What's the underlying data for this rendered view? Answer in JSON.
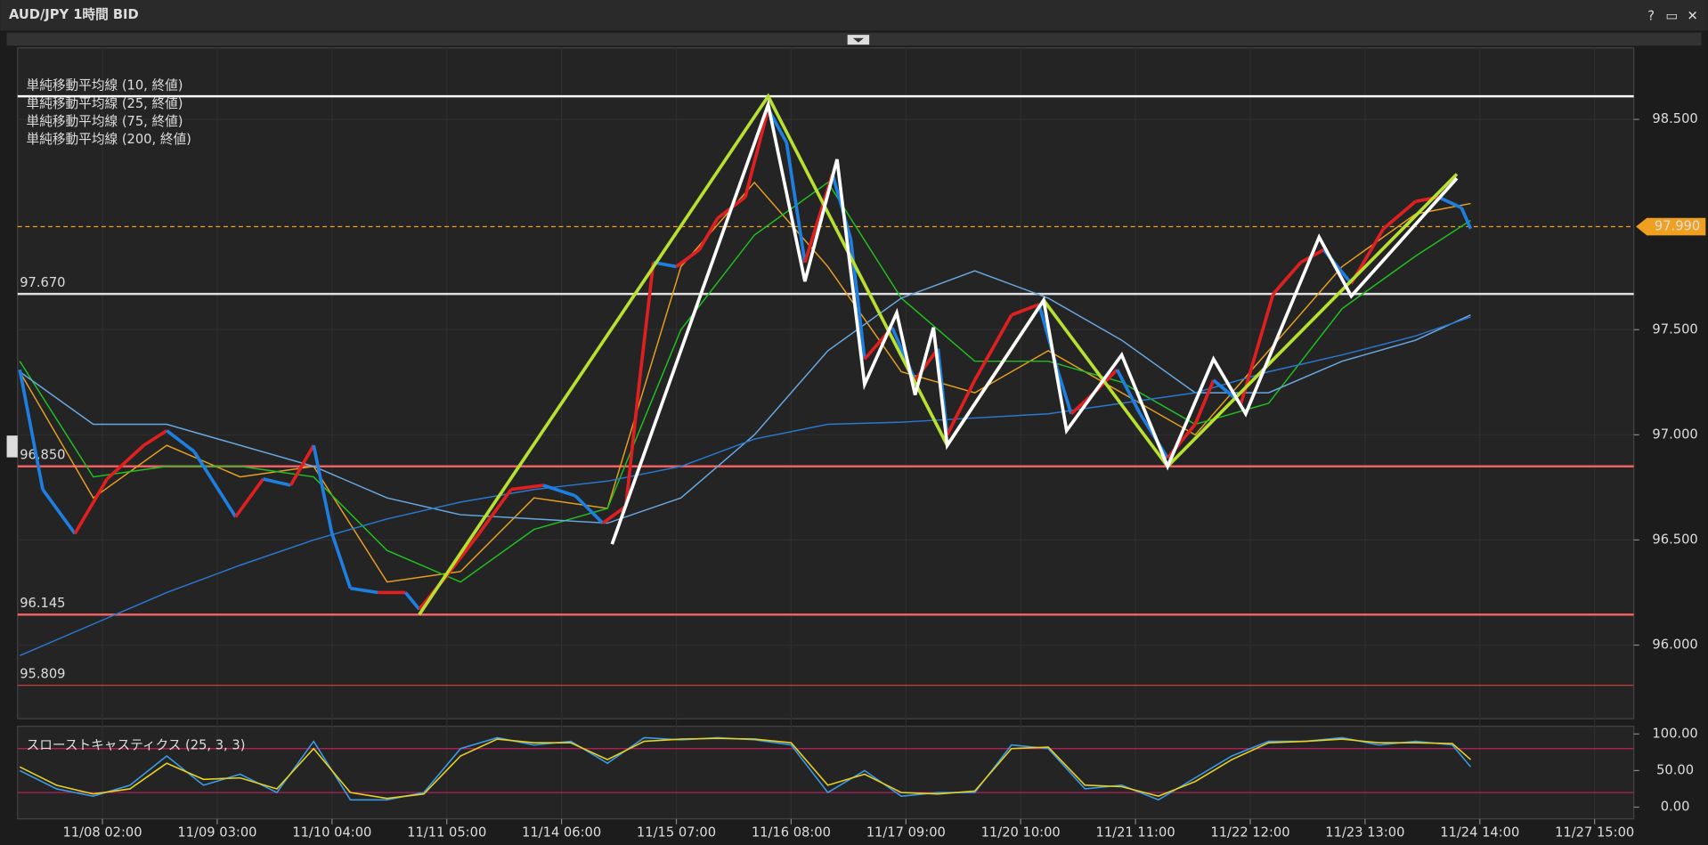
{
  "header": {
    "title": "AUD/JPY 1時間 BID",
    "buttons": [
      "?",
      "▭",
      "✕"
    ]
  },
  "chart_data": [
    {
      "type": "line",
      "legend": [
        "単純移動平均線 (10, 終値)",
        "単純移動平均線 (25, 終値)",
        "単純移動平均線 (75, 終値)",
        "単純移動平均線 (200, 終値)"
      ],
      "xlim": [
        0,
        352
      ],
      "xticks": [
        {
          "value": 18,
          "label": "11/08 02:00"
        },
        {
          "value": 43,
          "label": "11/09 03:00"
        },
        {
          "value": 68,
          "label": "11/10 04:00"
        },
        {
          "value": 93,
          "label": "11/11 05:00"
        },
        {
          "value": 118,
          "label": "11/14 06:00"
        },
        {
          "value": 143,
          "label": "11/15 07:00"
        },
        {
          "value": 168,
          "label": "11/16 08:00"
        },
        {
          "value": 193,
          "label": "11/17 09:00"
        },
        {
          "value": 218,
          "label": "11/20 10:00"
        },
        {
          "value": 243,
          "label": "11/21 11:00"
        },
        {
          "value": 268,
          "label": "11/22 12:00"
        },
        {
          "value": 293,
          "label": "11/23 13:00"
        },
        {
          "value": 318,
          "label": "11/24 14:00"
        },
        {
          "value": 343,
          "label": "11/27 15:00"
        }
      ],
      "ylim": [
        95.65,
        98.84
      ],
      "yticks": [
        {
          "value": 96,
          "label": "96.000"
        },
        {
          "value": 96.5,
          "label": "96.500"
        },
        {
          "value": 97,
          "label": "97.000"
        },
        {
          "value": 97.5,
          "label": "97.500"
        },
        {
          "value": 98.5,
          "label": "98.500"
        }
      ],
      "price": {
        "up_color": "#e02020",
        "down_color": "#1e7fe0",
        "x": [
          0,
          5,
          12,
          19,
          27,
          32,
          38,
          47,
          53,
          59,
          64,
          68,
          72,
          78,
          84,
          87,
          93,
          100,
          107,
          114,
          121,
          127,
          132,
          135,
          138,
          143,
          148,
          152,
          158,
          163,
          167,
          171,
          177,
          181,
          184,
          190,
          195,
          200,
          202,
          208,
          216,
          222,
          226,
          229,
          234,
          239,
          244,
          250,
          256,
          260,
          266,
          273,
          279,
          284,
          290,
          297,
          304,
          309,
          314,
          316
        ],
        "values": [
          97.31,
          96.74,
          96.53,
          96.79,
          96.95,
          97.02,
          96.92,
          96.61,
          96.79,
          96.76,
          96.95,
          96.53,
          96.27,
          96.25,
          96.25,
          96.17,
          96.33,
          96.53,
          96.74,
          96.76,
          96.71,
          96.58,
          96.66,
          97.26,
          97.82,
          97.8,
          97.88,
          98.03,
          98.13,
          98.55,
          98.39,
          97.82,
          98.24,
          97.93,
          97.36,
          97.51,
          97.26,
          97.41,
          97.0,
          97.26,
          97.57,
          97.62,
          97.31,
          97.1,
          97.2,
          97.31,
          97.1,
          96.89,
          97.05,
          97.26,
          97.15,
          97.67,
          97.82,
          97.88,
          97.72,
          97.98,
          98.11,
          98.13,
          98.08,
          97.98
        ]
      },
      "x": [
        0,
        16,
        32,
        48,
        64,
        80,
        96,
        112,
        128,
        144,
        160,
        176,
        192,
        208,
        224,
        240,
        256,
        272,
        288,
        304,
        316
      ],
      "series": [
        {
          "color": "#e8a020",
          "values": [
            97.3,
            96.7,
            96.95,
            96.8,
            96.85,
            96.3,
            96.35,
            96.7,
            96.65,
            97.8,
            98.2,
            97.8,
            97.3,
            97.2,
            97.4,
            97.2,
            97.0,
            97.4,
            97.8,
            98.05,
            98.1
          ]
        },
        {
          "color": "#20c020",
          "values": [
            97.35,
            96.8,
            96.85,
            96.85,
            96.8,
            96.45,
            96.3,
            96.55,
            96.65,
            97.5,
            97.95,
            98.2,
            97.65,
            97.35,
            97.35,
            97.25,
            97.05,
            97.15,
            97.6,
            97.85,
            98.02
          ]
        },
        {
          "color": "#6aa8e0",
          "values": [
            97.3,
            97.05,
            97.05,
            96.95,
            96.85,
            96.7,
            96.62,
            96.6,
            96.58,
            96.7,
            97.0,
            97.4,
            97.65,
            97.78,
            97.65,
            97.45,
            97.2,
            97.2,
            97.35,
            97.45,
            97.57
          ]
        },
        {
          "color": "#2a78d0",
          "values": [
            95.95,
            96.1,
            96.25,
            96.38,
            96.5,
            96.6,
            96.68,
            96.74,
            96.78,
            96.85,
            96.98,
            97.05,
            97.06,
            97.08,
            97.1,
            97.15,
            97.2,
            97.3,
            97.38,
            97.47,
            97.56
          ]
        }
      ],
      "levels": [
        {
          "value": 98.61,
          "color": "#ffffff"
        },
        {
          "value": 97.67,
          "label": "97.670",
          "color": "#e0e0e0"
        },
        {
          "value": 96.85,
          "label": "96.850",
          "color": "#f06060"
        },
        {
          "value": 96.145,
          "label": "96.145",
          "color": "#f06060"
        },
        {
          "value": 95.809,
          "label": "95.809",
          "color": "#c04040"
        }
      ],
      "current": {
        "value": 97.99,
        "label": "97.990",
        "color": "#f0a020"
      },
      "trendlines": [
        {
          "color": "#b8e030",
          "x": [
            87,
            163,
            202,
            223,
            250,
            313
          ],
          "values": [
            96.145,
            98.61,
            96.95,
            97.64,
            96.85,
            98.24
          ]
        },
        {
          "color": "#ffffff",
          "x": [
            129,
            163,
            171,
            178,
            184,
            191,
            195,
            199,
            202,
            223,
            228,
            240,
            250,
            260,
            267,
            283,
            290,
            313
          ],
          "values": [
            96.48,
            98.57,
            97.73,
            98.31,
            97.24,
            97.58,
            97.19,
            97.51,
            96.95,
            97.64,
            97.02,
            97.38,
            96.85,
            97.36,
            97.1,
            97.94,
            97.66,
            98.22
          ]
        }
      ]
    },
    {
      "type": "line",
      "title": "スローストキャスティクス (25, 3, 3)",
      "ylim": [
        -16,
        109
      ],
      "yticks": [
        {
          "value": 100,
          "label": "100.00"
        },
        {
          "value": 50,
          "label": "50.00"
        },
        {
          "value": 0,
          "label": "0.00"
        }
      ],
      "levels": [
        80,
        20
      ],
      "x": [
        0,
        8,
        16,
        24,
        32,
        40,
        48,
        56,
        64,
        72,
        80,
        88,
        96,
        104,
        112,
        120,
        128,
        136,
        144,
        152,
        160,
        168,
        176,
        184,
        192,
        200,
        208,
        216,
        224,
        232,
        240,
        248,
        256,
        264,
        272,
        280,
        288,
        296,
        304,
        312,
        316
      ],
      "series": [
        {
          "color": "#3a9ae8",
          "values": [
            50,
            25,
            15,
            30,
            70,
            30,
            45,
            20,
            90,
            10,
            10,
            20,
            80,
            95,
            85,
            90,
            60,
            95,
            92,
            95,
            92,
            85,
            20,
            50,
            15,
            20,
            20,
            85,
            80,
            25,
            30,
            10,
            40,
            70,
            90,
            90,
            95,
            85,
            90,
            85,
            55
          ]
        },
        {
          "color": "#e8d020",
          "values": [
            55,
            30,
            18,
            25,
            60,
            38,
            40,
            25,
            80,
            20,
            12,
            18,
            70,
            93,
            88,
            88,
            65,
            90,
            93,
            94,
            93,
            88,
            30,
            45,
            20,
            18,
            22,
            80,
            82,
            30,
            28,
            15,
            35,
            65,
            88,
            90,
            93,
            88,
            88,
            87,
            65
          ]
        }
      ]
    }
  ]
}
